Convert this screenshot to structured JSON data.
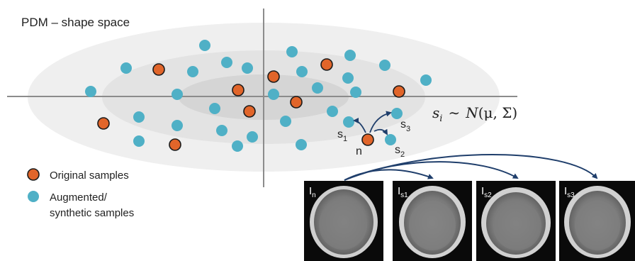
{
  "diagram": {
    "title": "PDM – shape space",
    "distribution": {
      "lhs": "s",
      "lhs_sub": "i",
      "sim": "∼",
      "rhs_func": "N",
      "rhs_args": "(μ, Σ)"
    },
    "legend": [
      {
        "label": "Original samples",
        "color": "#e1652a"
      },
      {
        "label_line1": "Augmented/",
        "label_line2": "synthetic samples",
        "color": "#4fb0c6"
      }
    ],
    "points": {
      "original_color": "#e1652a",
      "synthetic_color": "#4fb0c6",
      "n_label": "n",
      "s_labels": [
        {
          "main": "s",
          "sub": "1"
        },
        {
          "main": "s",
          "sub": "2"
        },
        {
          "main": "s",
          "sub": "3"
        }
      ]
    },
    "images": [
      {
        "main": "I",
        "sub": "n"
      },
      {
        "main": "I",
        "sub": "s1"
      },
      {
        "main": "I",
        "sub": "s2"
      },
      {
        "main": "I",
        "sub": "s3"
      }
    ],
    "arrow_color": "#1f3e6b"
  }
}
